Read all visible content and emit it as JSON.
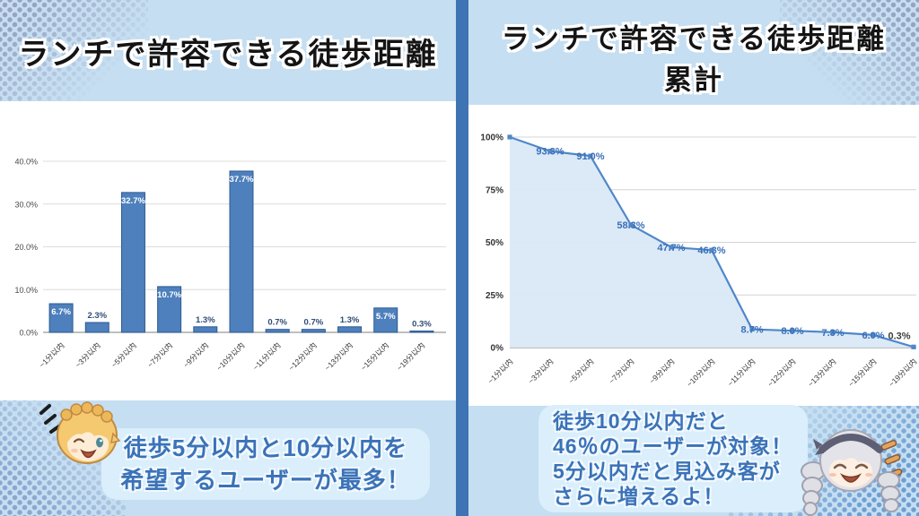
{
  "slide": {
    "left_title": "ランチで許容できる徒歩距離",
    "right_title_line1": "ランチで許容できる徒歩距離",
    "right_title_line2": "累計",
    "left_callout": [
      "徒歩5分以内と10分以内を",
      "希望するユーザーが最多！"
    ],
    "right_callout": [
      "徒歩10分以内だと",
      "46％のユーザーが対象！",
      "5分以内だと見込み客が",
      "さらに増えるよ！"
    ],
    "colors": {
      "background": "#c5def1",
      "divider": "#3e74b4",
      "panel": "#ffffff",
      "callout_bg": "#daeefb",
      "callout_text": "#3b72b8"
    }
  },
  "chart_data": [
    {
      "type": "bar",
      "title": "ランチで許容できる徒歩距離",
      "categories": [
        "~1分以内",
        "~3分以内",
        "~5分以内",
        "~7分以内",
        "~9分以内",
        "~10分以内",
        "~11分以内",
        "~12分以内",
        "~13分以内",
        "~15分以内",
        "~19分以内"
      ],
      "values": [
        6.7,
        2.3,
        32.7,
        10.7,
        1.3,
        37.7,
        0.7,
        0.7,
        1.3,
        5.7,
        0.3
      ],
      "value_labels": [
        "6.7%",
        "2.3%",
        "32.7%",
        "10.7%",
        "1.3%",
        "37.7%",
        "0.7%",
        "0.7%",
        "1.3%",
        "5.7%",
        "0.3%"
      ],
      "xlabel": "",
      "ylabel": "",
      "ylim": [
        0,
        40
      ],
      "ytick_values": [
        0,
        10,
        20,
        30,
        40
      ],
      "ytick_labels": [
        "0.0%",
        "10.0%",
        "20.0%",
        "30.0%",
        "40.0%"
      ],
      "grid": true,
      "legend": false,
      "bar_color": "#4d80bc",
      "bar_border": "#2e5a92"
    },
    {
      "type": "area",
      "title": "ランチで許容できる徒歩距離 累計",
      "categories": [
        "~1分以内",
        "~3分以内",
        "~5分以内",
        "~7分以内",
        "~9分以内",
        "~10分以内",
        "~11分以内",
        "~12分以内",
        "~13分以内",
        "~15分以内",
        "~19分以内"
      ],
      "values": [
        100,
        93.3,
        91.0,
        58.3,
        47.7,
        46.3,
        8.7,
        8.0,
        7.3,
        6.0,
        0.3
      ],
      "value_labels": [
        "",
        "93.3%",
        "91.0%",
        "58.3%",
        "47.7%",
        "46.3%",
        "8.7%",
        "8.0%",
        "7.3%",
        "6.0%",
        "0.3%"
      ],
      "xlabel": "",
      "ylabel": "",
      "ylim": [
        0,
        100
      ],
      "ytick_values": [
        0,
        25,
        50,
        75,
        100
      ],
      "ytick_labels": [
        "0%",
        "25%",
        "50%",
        "75%",
        "100%"
      ],
      "grid": true,
      "legend": false,
      "line_color": "#4f87c9",
      "area_fill": "#d9e8f6",
      "label_color": "#3a70b8"
    }
  ]
}
